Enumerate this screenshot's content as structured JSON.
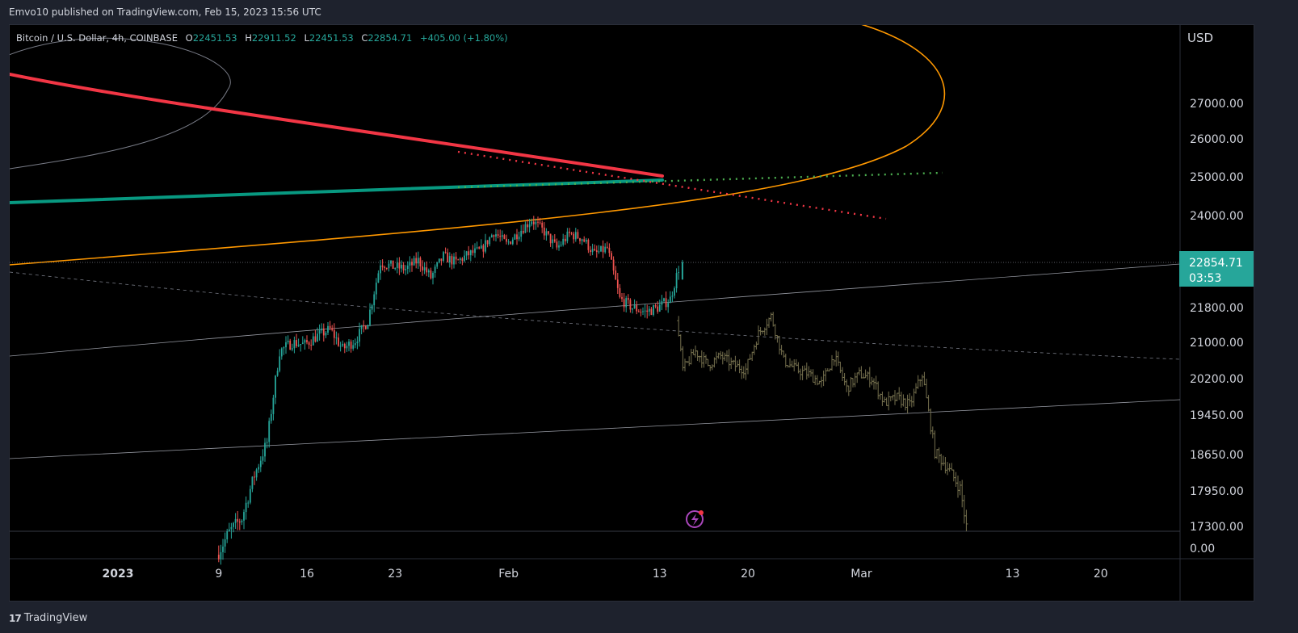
{
  "header": {
    "published": "Emvo10 published on TradingView.com, Feb 15, 2023 15:56 UTC"
  },
  "footer": {
    "brand": "TradingView",
    "logo": "17"
  },
  "legend": {
    "symbol": "Bitcoin / U.S. Dollar, 4h, COINBASE",
    "o_label": "O",
    "o_value": "22451.53",
    "h_label": "H",
    "h_value": "22911.52",
    "l_label": "L",
    "l_value": "22451.53",
    "c_label": "C",
    "c_value": "22854.71",
    "change": "+405.00 (+1.80%)"
  },
  "price_axis": {
    "currency": "USD",
    "current_price": "22854.71",
    "countdown": "03:53"
  },
  "colors": {
    "up": "#26a69a",
    "down": "#ef5350",
    "ghost": "#75704e",
    "orange": "#ff9800",
    "red": "#f23645",
    "teal": "#089981",
    "green_dots": "#4caf50"
  },
  "chart_data": {
    "type": "candlestick",
    "interval": "4h",
    "y_ticks": [
      {
        "label": "27000.00",
        "value": 27000
      },
      {
        "label": "26000.00",
        "value": 26000
      },
      {
        "label": "25000.00",
        "value": 25000
      },
      {
        "label": "24000.00",
        "value": 24000
      },
      {
        "label": "21800.00",
        "value": 21800
      },
      {
        "label": "21000.00",
        "value": 21000
      },
      {
        "label": "20200.00",
        "value": 20200
      },
      {
        "label": "19450.00",
        "value": 19450
      },
      {
        "label": "18650.00",
        "value": 18650
      },
      {
        "label": "17950.00",
        "value": 17950
      },
      {
        "label": "17300.00",
        "value": 17300
      },
      {
        "label": "0.00",
        "value": 0
      }
    ],
    "x_ticks": [
      {
        "label": "2023",
        "day": 0,
        "bold": true
      },
      {
        "label": "9",
        "day": 8
      },
      {
        "label": "16",
        "day": 15
      },
      {
        "label": "23",
        "day": 22
      },
      {
        "label": "Feb",
        "day": 31
      },
      {
        "label": "13",
        "day": 43
      },
      {
        "label": "20",
        "day": 50
      },
      {
        "label": "Mar",
        "day": 59
      },
      {
        "label": "13",
        "day": 71
      },
      {
        "label": "20",
        "day": 78
      }
    ],
    "actual_close_path": [
      [
        8,
        16850
      ],
      [
        9,
        17200
      ],
      [
        10,
        17450
      ],
      [
        11,
        18250
      ],
      [
        12,
        18900
      ],
      [
        13,
        20800
      ],
      [
        14,
        21000
      ],
      [
        15,
        20950
      ],
      [
        16,
        21150
      ],
      [
        17,
        21300
      ],
      [
        18,
        20850
      ],
      [
        19,
        21050
      ],
      [
        20,
        21500
      ],
      [
        21,
        22850
      ],
      [
        22,
        22750
      ],
      [
        23,
        22700
      ],
      [
        24,
        22900
      ],
      [
        25,
        22500
      ],
      [
        26,
        23000
      ],
      [
        27,
        22850
      ],
      [
        28,
        23050
      ],
      [
        29,
        23150
      ],
      [
        30,
        23600
      ],
      [
        31,
        23300
      ],
      [
        32,
        23600
      ],
      [
        33,
        23900
      ],
      [
        34,
        23600
      ],
      [
        35,
        23200
      ],
      [
        36,
        23550
      ],
      [
        37,
        23450
      ],
      [
        38,
        23050
      ],
      [
        39,
        23200
      ],
      [
        40,
        22000
      ],
      [
        41,
        21800
      ],
      [
        42,
        21700
      ],
      [
        43,
        21800
      ],
      [
        44,
        22000
      ],
      [
        44.8,
        22855
      ]
    ],
    "ghost_close_path": [
      [
        44.5,
        21500
      ],
      [
        45,
        20400
      ],
      [
        46,
        20800
      ],
      [
        47,
        20500
      ],
      [
        48,
        20700
      ],
      [
        49,
        20500
      ],
      [
        50,
        20400
      ],
      [
        51,
        21200
      ],
      [
        52,
        21600
      ],
      [
        53,
        20600
      ],
      [
        54,
        20400
      ],
      [
        55,
        20300
      ],
      [
        56,
        20100
      ],
      [
        57,
        20700
      ],
      [
        58,
        20000
      ],
      [
        59,
        20300
      ],
      [
        60,
        20200
      ],
      [
        61,
        19700
      ],
      [
        62,
        19800
      ],
      [
        63,
        19650
      ],
      [
        64,
        20300
      ],
      [
        65,
        18700
      ],
      [
        66,
        18400
      ],
      [
        67,
        18000
      ],
      [
        67.5,
        17300
      ]
    ],
    "last_candle": {
      "open": 22451.53,
      "high": 22911.52,
      "low": 22451.53,
      "close": 22854.71
    }
  }
}
